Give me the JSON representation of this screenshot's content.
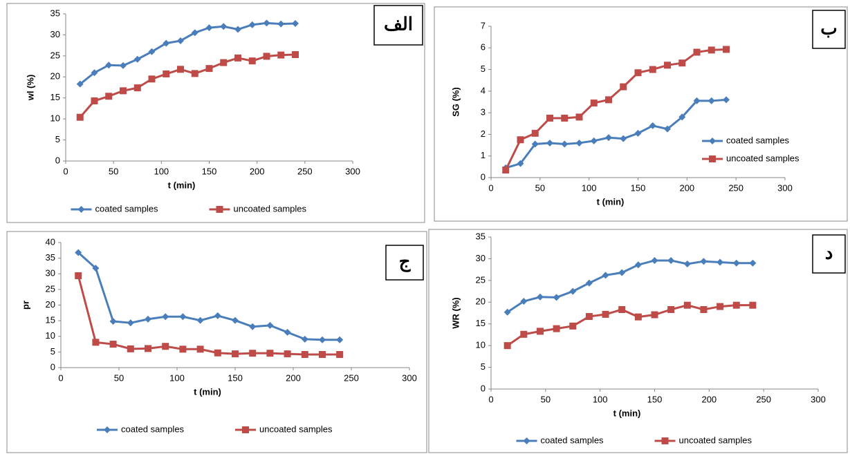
{
  "chart_data": [
    {
      "type": "line",
      "panel_label": "الف",
      "ylabel": "wl (%)",
      "xlabel": "t (min)",
      "legend": "bottom",
      "x": [
        15,
        30,
        45,
        60,
        75,
        90,
        105,
        120,
        135,
        150,
        165,
        180,
        195,
        210,
        225,
        240
      ],
      "xlim": [
        0,
        300
      ],
      "xticks": [
        0,
        50,
        100,
        150,
        200,
        250,
        300
      ],
      "ylim": [
        0,
        35
      ],
      "yticks": [
        0,
        5,
        10,
        15,
        20,
        25,
        30,
        35
      ],
      "series": [
        {
          "name": "coated samples",
          "color": "#4a7ebb",
          "marker": "diamond",
          "values": [
            18.3,
            21,
            22.8,
            22.7,
            24.2,
            26,
            28,
            28.6,
            30.5,
            31.7,
            32,
            31.3,
            32.4,
            32.8,
            32.6,
            32.7
          ]
        },
        {
          "name": "uncoated samples",
          "color": "#be4b48",
          "marker": "square",
          "values": [
            10.4,
            14.3,
            15.4,
            16.7,
            17.4,
            19.5,
            20.7,
            21.8,
            20.8,
            22,
            23.4,
            24.5,
            23.8,
            24.9,
            25.2,
            25.3
          ]
        }
      ]
    },
    {
      "type": "line",
      "panel_label": "ب",
      "ylabel": "SG (%)",
      "xlabel": "t (min)",
      "legend": "right",
      "x": [
        15,
        30,
        45,
        60,
        75,
        90,
        105,
        120,
        135,
        150,
        165,
        180,
        195,
        210,
        225,
        240
      ],
      "xlim": [
        0,
        300
      ],
      "xticks": [
        0,
        50,
        100,
        150,
        200,
        250,
        300
      ],
      "ylim": [
        0,
        7
      ],
      "yticks": [
        0,
        1,
        2,
        3,
        4,
        5,
        6,
        7
      ],
      "series": [
        {
          "name": "coated samples",
          "color": "#4a7ebb",
          "marker": "diamond",
          "values": [
            0.45,
            0.65,
            1.55,
            1.6,
            1.55,
            1.6,
            1.7,
            1.85,
            1.8,
            2.05,
            2.4,
            2.25,
            2.8,
            3.55,
            3.55,
            3.6
          ]
        },
        {
          "name": "uncoated samples",
          "color": "#be4b48",
          "marker": "square",
          "values": [
            0.35,
            1.75,
            2.05,
            2.75,
            2.75,
            2.8,
            3.45,
            3.6,
            4.2,
            4.85,
            5.0,
            5.2,
            5.3,
            5.8,
            5.9,
            5.93
          ]
        }
      ]
    },
    {
      "type": "line",
      "panel_label": "ج",
      "ylabel": "pr",
      "xlabel": "t (min)",
      "legend": "bottom",
      "x": [
        15,
        30,
        45,
        60,
        75,
        90,
        105,
        120,
        135,
        150,
        165,
        180,
        195,
        210,
        225,
        240
      ],
      "xlim": [
        0,
        300
      ],
      "xticks": [
        0,
        50,
        100,
        150,
        200,
        250,
        300
      ],
      "ylim": [
        0,
        40
      ],
      "yticks": [
        0,
        5,
        10,
        15,
        20,
        25,
        30,
        35,
        40
      ],
      "series": [
        {
          "name": "coated samples",
          "color": "#4a7ebb",
          "marker": "diamond",
          "values": [
            36.8,
            31.8,
            14.8,
            14.3,
            15.5,
            16.3,
            16.3,
            15.1,
            16.6,
            15.1,
            13.1,
            13.5,
            11.3,
            9.1,
            8.9,
            8.9
          ]
        },
        {
          "name": "uncoated samples",
          "color": "#be4b48",
          "marker": "square",
          "values": [
            29.4,
            8.1,
            7.5,
            6,
            6.1,
            6.8,
            5.9,
            5.9,
            4.7,
            4.4,
            4.6,
            4.6,
            4.4,
            4.2,
            4.2,
            4.2
          ]
        }
      ]
    },
    {
      "type": "line",
      "panel_label": "د",
      "ylabel": "WR (%)",
      "xlabel": "t (min)",
      "legend": "bottom",
      "x": [
        15,
        30,
        45,
        60,
        75,
        90,
        105,
        120,
        135,
        150,
        165,
        180,
        195,
        210,
        225,
        240
      ],
      "xlim": [
        0,
        300
      ],
      "xticks": [
        0,
        50,
        100,
        150,
        200,
        250,
        300
      ],
      "ylim": [
        0,
        35
      ],
      "yticks": [
        0,
        5,
        10,
        15,
        20,
        25,
        30,
        35
      ],
      "series": [
        {
          "name": "coated samples",
          "color": "#4a7ebb",
          "marker": "diamond",
          "values": [
            17.7,
            20.2,
            21.2,
            21.1,
            22.5,
            24.4,
            26.2,
            26.8,
            28.6,
            29.6,
            29.6,
            28.8,
            29.4,
            29.2,
            29,
            29
          ]
        },
        {
          "name": "uncoated samples",
          "color": "#be4b48",
          "marker": "square",
          "values": [
            10,
            12.6,
            13.3,
            13.9,
            14.5,
            16.7,
            17.2,
            18.3,
            16.6,
            17.1,
            18.3,
            19.3,
            18.3,
            19,
            19.3,
            19.3
          ]
        }
      ]
    }
  ]
}
